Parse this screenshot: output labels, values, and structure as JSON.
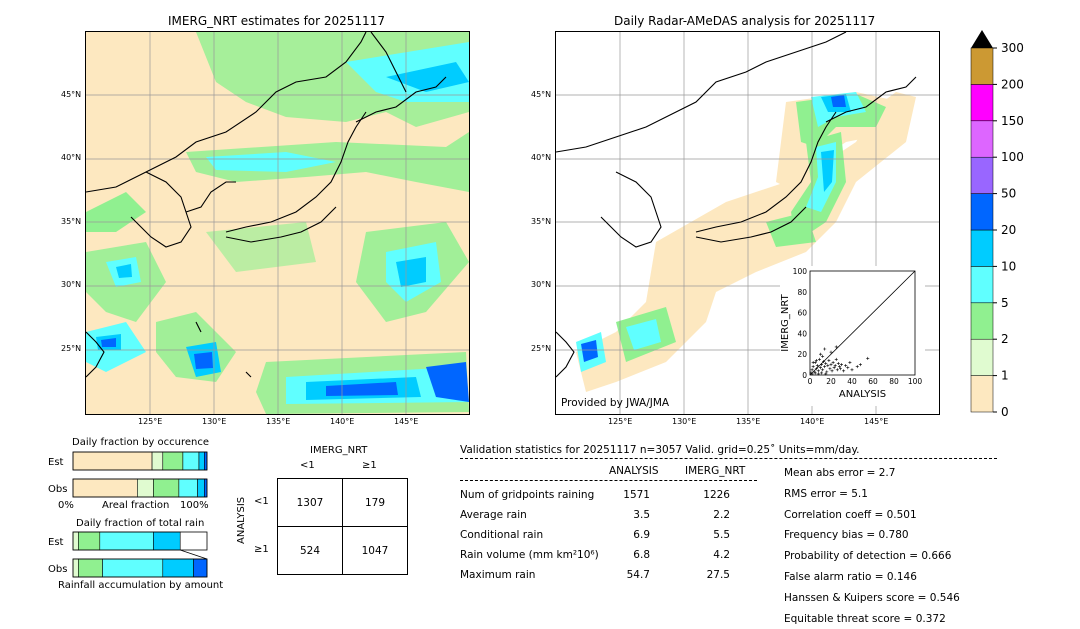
{
  "left_map": {
    "title": "IMERG_NRT estimates for 20251117",
    "lat_labels": [
      "45°N",
      "40°N",
      "35°N",
      "30°N",
      "25°N"
    ],
    "lon_labels": [
      "125°E",
      "130°E",
      "135°E",
      "140°E",
      "145°E"
    ]
  },
  "right_map": {
    "title": "Daily Radar-AMeDAS analysis for 20251117",
    "lat_labels": [
      "45°N",
      "40°N",
      "35°N",
      "30°N",
      "25°N"
    ],
    "lon_labels": [
      "125°E",
      "130°E",
      "135°E",
      "140°E",
      "145°E"
    ],
    "credit": "Provided by JWA/JMA"
  },
  "colorbar": {
    "levels": [
      "0",
      "1",
      "2",
      "5",
      "10",
      "20",
      "50",
      "100",
      "150",
      "200",
      "300"
    ],
    "colors": [
      "#fde8c0",
      "#e0fbd0",
      "#90f090",
      "#60ffff",
      "#00ccff",
      "#0066ff",
      "#9966ff",
      "#dd66ff",
      "#ff00ff",
      "#cc9933"
    ],
    "extend_color": "#000000"
  },
  "chart_data": [
    {
      "type": "scatter",
      "title": "",
      "xlabel": "ANALYSIS",
      "ylabel": "IMERG_NRT",
      "xlim": [
        0,
        100
      ],
      "ylim": [
        0,
        100
      ],
      "ticks": [
        "0",
        "20",
        "40",
        "60",
        "80",
        "100"
      ],
      "points": [
        [
          1,
          2
        ],
        [
          2,
          5
        ],
        [
          3,
          8
        ],
        [
          4,
          3
        ],
        [
          5,
          12
        ],
        [
          6,
          6
        ],
        [
          7,
          9
        ],
        [
          8,
          4
        ],
        [
          9,
          15
        ],
        [
          10,
          7
        ],
        [
          11,
          10
        ],
        [
          12,
          5
        ],
        [
          13,
          13
        ],
        [
          14,
          8
        ],
        [
          15,
          11
        ],
        [
          16,
          3
        ],
        [
          17,
          9
        ],
        [
          18,
          14
        ],
        [
          19,
          6
        ],
        [
          20,
          10
        ],
        [
          21,
          4
        ],
        [
          22,
          12
        ],
        [
          23,
          7
        ],
        [
          24,
          9
        ],
        [
          25,
          15
        ],
        [
          26,
          5
        ],
        [
          27,
          11
        ],
        [
          28,
          8
        ],
        [
          29,
          6
        ],
        [
          30,
          10
        ],
        [
          32,
          4
        ],
        [
          34,
          9
        ],
        [
          36,
          7
        ],
        [
          38,
          12
        ],
        [
          40,
          5
        ],
        [
          45,
          8
        ],
        [
          48,
          10
        ],
        [
          55,
          16
        ],
        [
          14,
          25
        ],
        [
          20,
          22
        ],
        [
          25,
          27
        ],
        [
          10,
          20
        ],
        [
          3,
          12
        ],
        [
          6,
          14
        ],
        [
          12,
          18
        ],
        [
          2,
          1
        ],
        [
          5,
          2
        ],
        [
          8,
          1
        ],
        [
          11,
          2
        ],
        [
          15,
          1
        ]
      ]
    },
    {
      "type": "table",
      "title": "IMERG_NRT",
      "row_axis_label": "ANALYSIS",
      "col_labels": [
        "<1",
        "≥1"
      ],
      "row_labels": [
        "<1",
        "≥1"
      ],
      "cells": [
        [
          "1307",
          "179"
        ],
        [
          "524",
          "1047"
        ]
      ]
    },
    {
      "type": "bar",
      "title": "Daily fraction by occurence",
      "row_labels": [
        "Est",
        "Obs"
      ],
      "xlabel_left": "0%",
      "xlabel_mid": "Areal fraction",
      "xlabel_right": "100%",
      "series": [
        {
          "name": "Est",
          "values": [
            0.59,
            0.08,
            0.15,
            0.12,
            0.04,
            0.02
          ]
        },
        {
          "name": "Obs",
          "values": [
            0.48,
            0.12,
            0.19,
            0.14,
            0.05,
            0.02
          ]
        }
      ]
    },
    {
      "type": "bar",
      "title": "Daily fraction of total rain",
      "row_labels": [
        "Est",
        "Obs"
      ],
      "xlabel_mid": "Rainfall accumulation by amount",
      "series": [
        {
          "name": "Est",
          "values": [
            0.04,
            0.16,
            0.4,
            0.2,
            0.0
          ]
        },
        {
          "name": "Obs",
          "values": [
            0.04,
            0.18,
            0.45,
            0.23,
            0.1
          ]
        }
      ]
    }
  ],
  "validation": {
    "header": "Validation statistics for 20251117  n=3057 Valid. grid=0.25˚ Units=mm/day.",
    "col_analysis": "ANALYSIS",
    "col_imerg": "IMERG_NRT",
    "rows": [
      {
        "label": "Num of gridpoints raining",
        "analysis": "1571",
        "imerg": "1226"
      },
      {
        "label": "Average rain",
        "analysis": "3.5",
        "imerg": "2.2"
      },
      {
        "label": "Conditional rain",
        "analysis": "6.9",
        "imerg": "5.5"
      },
      {
        "label": "Rain volume (mm km²10⁶)",
        "analysis": "6.8",
        "imerg": "4.2"
      },
      {
        "label": "Maximum rain",
        "analysis": "54.7",
        "imerg": "27.5"
      }
    ],
    "scores": [
      "Mean abs error =    2.7",
      "RMS error =    5.1",
      "Correlation coeff =  0.501",
      "Frequency bias =  0.780",
      "Probability of detection =  0.666",
      "False alarm ratio =  0.146",
      "Hanssen & Kuipers score =  0.546",
      "Equitable threat score =  0.372"
    ]
  }
}
